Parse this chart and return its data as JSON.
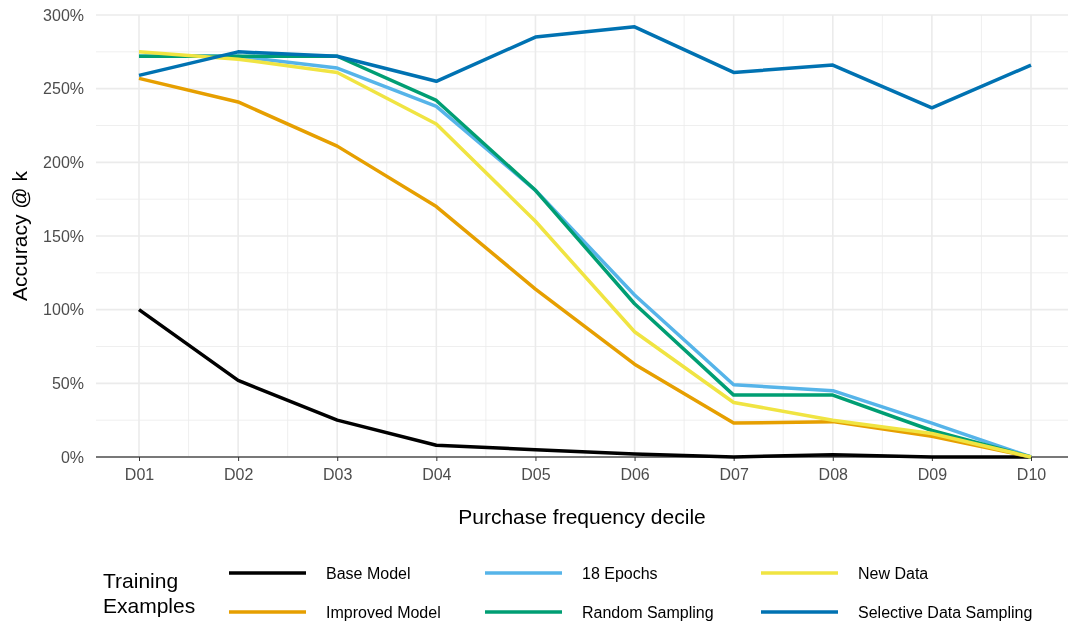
{
  "chart_data": {
    "type": "line",
    "xlabel": "Purchase frequency decile",
    "ylabel": "Accuracy @ k",
    "legend_title": "Training Examples",
    "categories": [
      "D01",
      "D02",
      "D03",
      "D04",
      "D05",
      "D06",
      "D07",
      "D08",
      "D09",
      "D10"
    ],
    "ylim": [
      0,
      300
    ],
    "yticks": [
      {
        "value": 0,
        "label": "0%"
      },
      {
        "value": 50,
        "label": "50%"
      },
      {
        "value": 100,
        "label": "100%"
      },
      {
        "value": 150,
        "label": "150%"
      },
      {
        "value": 200,
        "label": "200%"
      },
      {
        "value": 250,
        "label": "250%"
      },
      {
        "value": 300,
        "label": "300%"
      }
    ],
    "grid": true,
    "legend": "bottom",
    "line_style": "solid",
    "series": [
      {
        "name": "Base Model",
        "color": "#000000",
        "values": [
          100,
          52,
          25,
          8,
          5,
          2,
          0,
          1.5,
          0,
          0
        ]
      },
      {
        "name": "Improved Model",
        "color": "#e69f00",
        "values": [
          257,
          241,
          211,
          170,
          114,
          63,
          23,
          24,
          14,
          0
        ]
      },
      {
        "name": "18 Epochs",
        "color": "#56b4e9",
        "values": [
          272,
          272,
          264,
          238,
          181,
          110,
          49,
          45,
          23,
          0
        ]
      },
      {
        "name": "Random Sampling",
        "color": "#009e73",
        "values": [
          272,
          272,
          272,
          242,
          181,
          104,
          42,
          42,
          18,
          0
        ]
      },
      {
        "name": "New Data",
        "color": "#f0e442",
        "values": [
          275,
          270,
          261,
          226,
          160,
          85,
          37,
          25,
          16,
          0
        ]
      },
      {
        "name": "Selective Data Sampling",
        "color": "#0072b2",
        "values": [
          259,
          275,
          272,
          255,
          285,
          292,
          261,
          266,
          237,
          266
        ]
      }
    ]
  }
}
